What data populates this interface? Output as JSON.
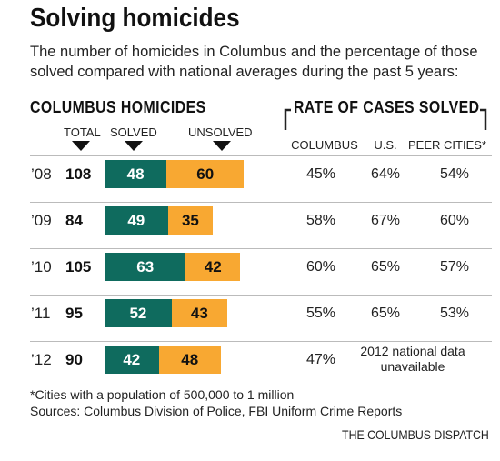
{
  "chart_data": {
    "type": "table",
    "title": "Solving homicides",
    "subtitle": "The number of homicides in Columbus and the percentage of those solved compared with national averages during the past 5 years:",
    "left_section": {
      "heading": "COLUMBUS HOMICIDES",
      "columns": [
        "TOTAL",
        "SOLVED",
        "UNSOLVED"
      ]
    },
    "right_section": {
      "heading": "RATE OF CASES SOLVED",
      "columns": [
        "COLUMBUS",
        "U.S.",
        "PEER CITIES*"
      ]
    },
    "rows": [
      {
        "year": "’08",
        "total": 108,
        "solved": 48,
        "unsolved": 60,
        "columbus": "45%",
        "us": "64%",
        "peer": "54%"
      },
      {
        "year": "’09",
        "total": 84,
        "solved": 49,
        "unsolved": 35,
        "columbus": "58%",
        "us": "67%",
        "peer": "60%"
      },
      {
        "year": "’10",
        "total": 105,
        "solved": 63,
        "unsolved": 42,
        "columbus": "60%",
        "us": "65%",
        "peer": "57%"
      },
      {
        "year": "’11",
        "total": 95,
        "solved": 52,
        "unsolved": 43,
        "columbus": "55%",
        "us": "65%",
        "peer": "53%"
      },
      {
        "year": "’12",
        "total": 90,
        "solved": 42,
        "unsolved": 48,
        "columbus": "47%",
        "note": "2012 national data unavailable"
      }
    ],
    "footnote": "*Cities with a population of 500,000 to 1 million",
    "sources": "Sources: Columbus Division of Police, FBI Uniform Crime Reports",
    "credit": "THE COLUMBUS DISPATCH",
    "colors": {
      "solved": "#0f6b5e",
      "unsolved": "#f8a832",
      "rule": "#bbbbbb"
    }
  }
}
